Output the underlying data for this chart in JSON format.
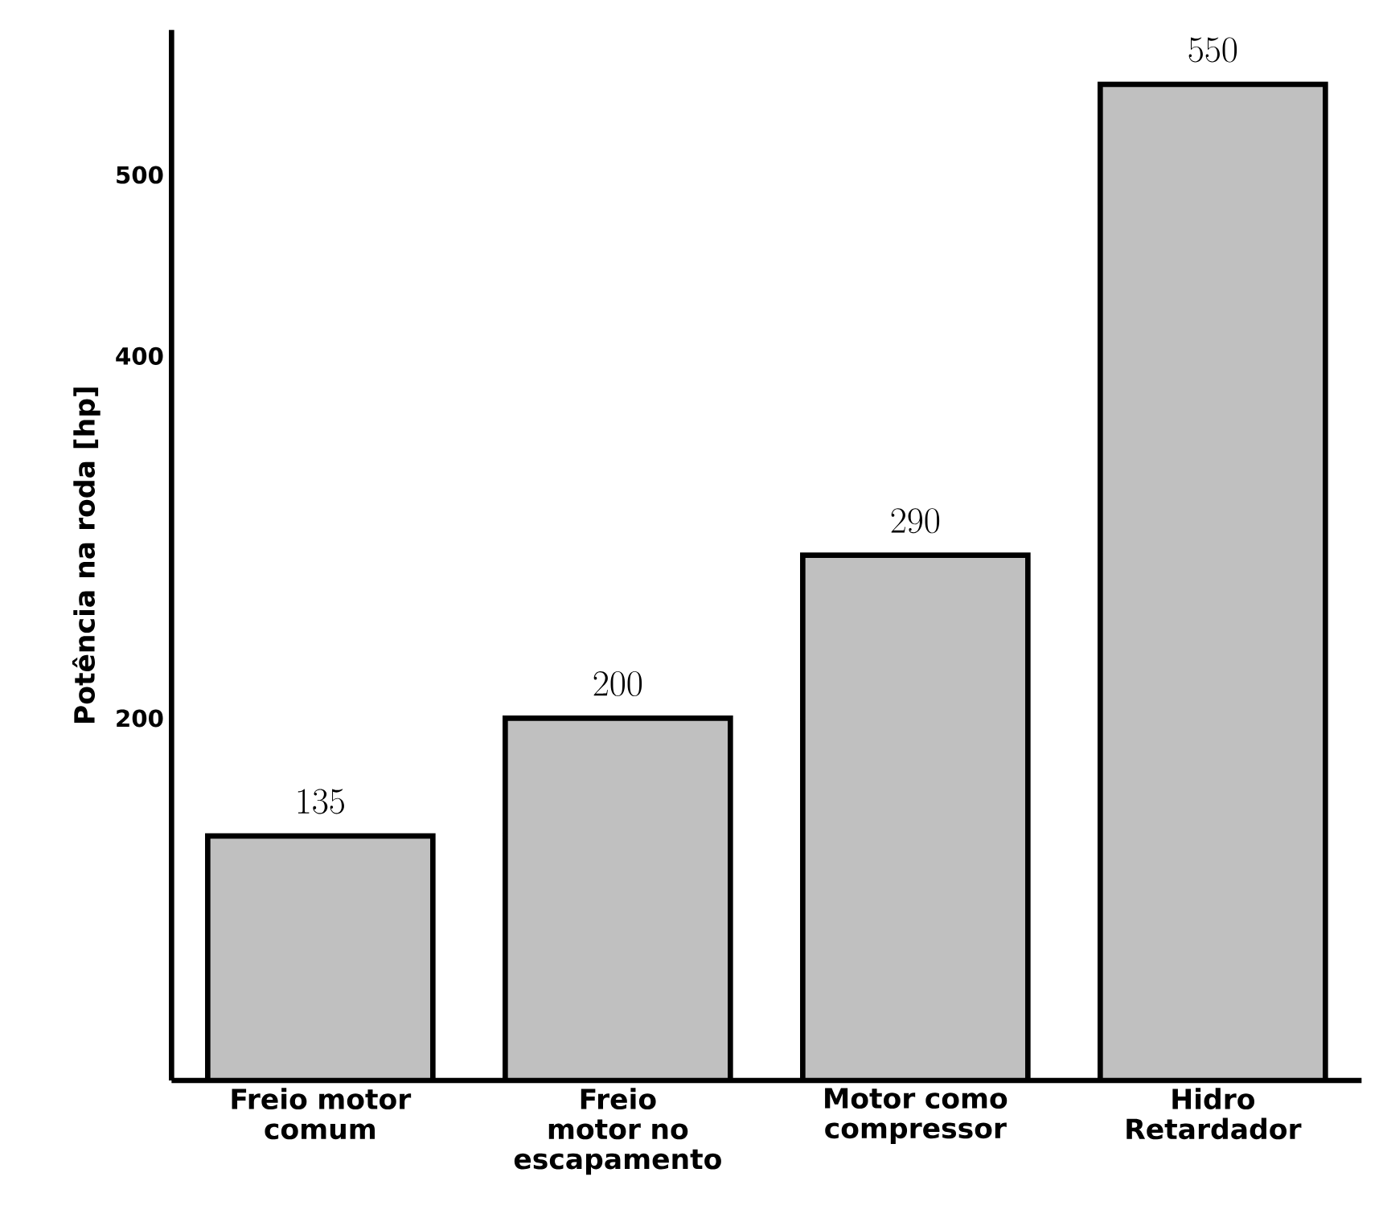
{
  "chart_data": {
    "type": "bar",
    "ylabel": "Potência na roda [hp]",
    "categories": [
      "Freio motor comum",
      "Freio motor no escapamento",
      "Motor como compressor",
      "Hidro Retardador"
    ],
    "values": [
      135,
      200,
      290,
      550
    ],
    "color": "#c0c0c0",
    "ylim": [
      0,
      580
    ],
    "yticks": [
      200,
      400,
      500
    ],
    "data_labels": true,
    "grid": false
  }
}
